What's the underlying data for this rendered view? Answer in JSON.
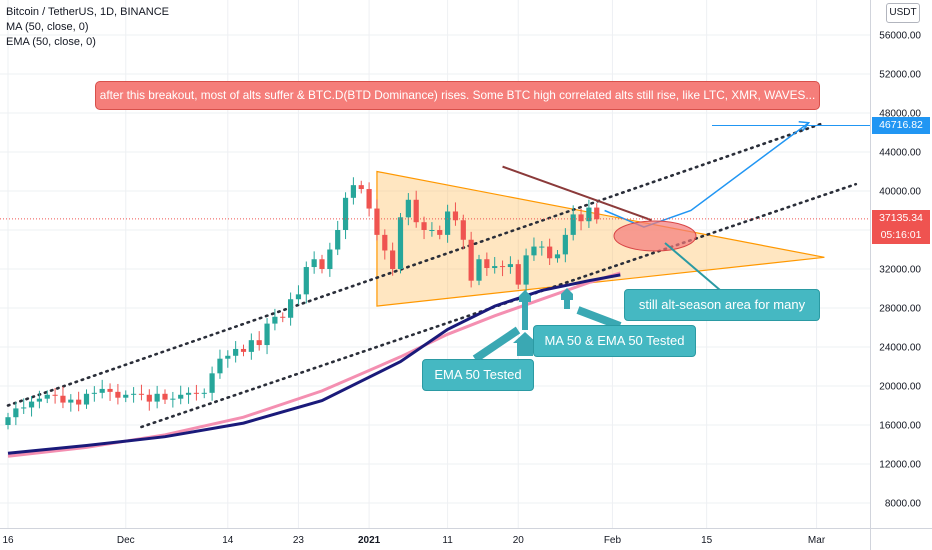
{
  "header": {
    "symbol_line": "Bitcoin / TetherUS, 1D, BINANCE",
    "ma_line": "MA (50, close, 0)",
    "ema_line": "EMA (50, close, 0)",
    "currency_button": "USDT"
  },
  "annotations": {
    "top_note": "after this breakout, most of alts suffer & BTC.D(BTD Dominance) rises. Some BTC high correlated alts still rise, like LTC, XMR, WAVES...",
    "alt_season": "still alt-season area for many",
    "ma_ema_tested": "MA 50 & EMA 50 Tested",
    "ema_tested": "EMA 50 Tested"
  },
  "price_tags": {
    "target": "46716.82",
    "current": "37135.34",
    "countdown": "05:16:01"
  },
  "colors": {
    "ma": "#1a1a7a",
    "ema": "#f48fb1",
    "up": "#26a69a",
    "down": "#ef5350",
    "triangle": "#ffb74d",
    "target_line": "#2196f3",
    "dotted": "#2a2e39",
    "callout_red": "#f57e7a",
    "callout_teal": "#45b8c2"
  },
  "chart_data": {
    "type": "candlestick",
    "y_ticks": [
      "56000.00",
      "52000.00",
      "48000.00",
      "44000.00",
      "40000.00",
      "36000.00",
      "32000.00",
      "28000.00",
      "24000.00",
      "20000.00",
      "16000.00",
      "12000.00",
      "8000.00"
    ],
    "y_values": [
      56000,
      52000,
      48000,
      44000,
      40000,
      36000,
      32000,
      28000,
      24000,
      20000,
      16000,
      12000,
      8000
    ],
    "x_ticks": [
      "16",
      "Dec",
      "14",
      "23",
      "2021",
      "11",
      "20",
      "Feb",
      "15",
      "Mar"
    ],
    "x_tick_days": [
      0,
      15,
      28,
      37,
      46,
      56,
      65,
      77,
      89,
      103
    ],
    "x_tick_bold": [
      false,
      false,
      false,
      false,
      true,
      false,
      false,
      false,
      false,
      false
    ],
    "ylim": [
      5500,
      58500
    ],
    "xlim_days": [
      0,
      114
    ],
    "candles": [
      [
        16000,
        16800
      ],
      [
        16800,
        17700
      ],
      [
        17700,
        17800
      ],
      [
        17800,
        18400
      ],
      [
        18400,
        18700
      ],
      [
        18700,
        19100
      ],
      [
        19100,
        19000
      ],
      [
        19000,
        18300
      ],
      [
        18300,
        18600
      ],
      [
        18600,
        18100
      ],
      [
        18100,
        19200
      ],
      [
        19200,
        19300
      ],
      [
        19300,
        19700
      ],
      [
        19700,
        19400
      ],
      [
        19400,
        18800
      ],
      [
        18800,
        19100
      ],
      [
        19100,
        19200
      ],
      [
        19200,
        19100
      ],
      [
        19100,
        18400
      ],
      [
        18400,
        19200
      ],
      [
        19200,
        18600
      ],
      [
        18600,
        18700
      ],
      [
        18700,
        19100
      ],
      [
        19100,
        19300
      ],
      [
        19300,
        19200
      ],
      [
        19200,
        19300
      ],
      [
        19300,
        21300
      ],
      [
        21300,
        22800
      ],
      [
        22800,
        23100
      ],
      [
        23100,
        23800
      ],
      [
        23800,
        23500
      ],
      [
        23500,
        24700
      ],
      [
        24700,
        24200
      ],
      [
        24200,
        26400
      ],
      [
        26400,
        27100
      ],
      [
        27100,
        27000
      ],
      [
        27000,
        28900
      ],
      [
        28900,
        29400
      ],
      [
        29400,
        32200
      ],
      [
        32200,
        33000
      ],
      [
        33000,
        32000
      ],
      [
        32000,
        34000
      ],
      [
        34000,
        36000
      ],
      [
        36000,
        39300
      ],
      [
        39300,
        40600
      ],
      [
        40600,
        40200
      ],
      [
        40200,
        38200
      ],
      [
        38200,
        35500
      ],
      [
        35500,
        33900
      ],
      [
        33900,
        32000
      ],
      [
        32000,
        37300
      ],
      [
        37300,
        39100
      ],
      [
        39100,
        36800
      ],
      [
        36800,
        36000
      ],
      [
        36000,
        36000
      ],
      [
        36000,
        35500
      ],
      [
        35500,
        37900
      ],
      [
        37900,
        37000
      ],
      [
        37000,
        35000
      ],
      [
        35000,
        30800
      ],
      [
        30800,
        33000
      ],
      [
        33000,
        32100
      ],
      [
        32100,
        32300
      ],
      [
        32300,
        32200
      ],
      [
        32200,
        32500
      ],
      [
        32500,
        30400
      ],
      [
        30400,
        33400
      ],
      [
        33400,
        34300
      ],
      [
        34300,
        34300
      ],
      [
        34300,
        33100
      ],
      [
        33100,
        33500
      ],
      [
        33500,
        35500
      ],
      [
        35500,
        37600
      ],
      [
        37600,
        36900
      ],
      [
        36900,
        38300
      ],
      [
        38300,
        37100
      ]
    ],
    "ma_50": [
      [
        0,
        13100
      ],
      [
        10,
        13900
      ],
      [
        20,
        14800
      ],
      [
        30,
        16200
      ],
      [
        40,
        18500
      ],
      [
        50,
        22500
      ],
      [
        56,
        25800
      ],
      [
        62,
        28200
      ],
      [
        68,
        29800
      ],
      [
        74,
        30800
      ],
      [
        78,
        31400
      ]
    ],
    "ema_50": [
      [
        0,
        12800
      ],
      [
        10,
        13700
      ],
      [
        20,
        15000
      ],
      [
        30,
        16800
      ],
      [
        40,
        19500
      ],
      [
        50,
        23000
      ],
      [
        56,
        25300
      ],
      [
        62,
        27200
      ],
      [
        68,
        28900
      ],
      [
        74,
        30600
      ],
      [
        78,
        31600
      ]
    ],
    "triangle": [
      [
        47,
        42000
      ],
      [
        47,
        28200
      ],
      [
        104,
        33200
      ]
    ],
    "upper_channel": [
      [
        0,
        18000
      ],
      [
        104,
        47000
      ]
    ],
    "lower_channel": [
      [
        17,
        15800
      ],
      [
        108,
        40700
      ]
    ],
    "path_projection": [
      [
        76,
        38000
      ],
      [
        81,
        36300
      ],
      [
        87,
        38000
      ],
      [
        102,
        47000
      ]
    ],
    "breakdown_line": [
      [
        63,
        42500
      ],
      [
        82,
        37000
      ]
    ],
    "target_value": 46716.82,
    "current_value": 37135.34
  }
}
